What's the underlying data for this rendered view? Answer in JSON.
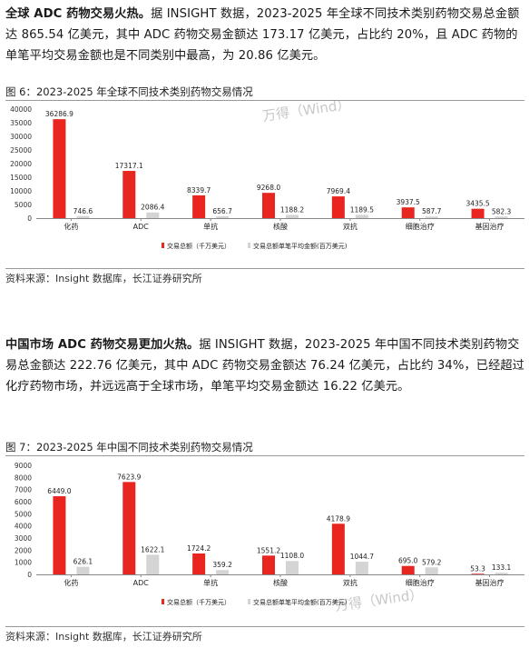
{
  "para1": {
    "bold": "全球 ADC 药物交易火热。",
    "text": "据 INSIGHT 数据，2023-2025 年全球不同技术类别药物交易总金额达 865.54 亿美元，其中 ADC 药物交易金额达 173.17 亿美元，占比约 20%，且 ADC 药物的单笔平均交易金额也是不同类别中最高，为 20.86 亿美元。"
  },
  "fig1": {
    "title": "图 6：2023-2025 年全球不同技术类别药物交易情况",
    "source": "资料来源：Insight 数据库，长江证券研究所",
    "watermark": "万得（Wind）"
  },
  "para2": {
    "bold": "中国市场 ADC 药物交易更加火热。",
    "text": "据 INSIGHT 数据，2023-2025 年中国不同技术类别药物交易总金额达 222.76 亿美元，其中 ADC 药物交易金额达 76.24 亿美元，占比约 34%，已经超过化疗药物市场，并远远高于全球市场，单笔平均交易金额达 16.22 亿美元。"
  },
  "fig2": {
    "title": "图 7：2023-2025 年中国不同技术类别药物交易情况",
    "source": "资料来源：Insight 数据库，长江证券研究所",
    "watermark": "万得（Wind）"
  },
  "colors": {
    "total": "#e8251f",
    "avg": "#d4d4d4"
  },
  "chart_data": [
    {
      "type": "bar",
      "categories": [
        "化药",
        "ADC",
        "单抗",
        "核酸",
        "双抗",
        "细胞治疗",
        "基因治疗"
      ],
      "series": [
        {
          "name": "交易总额（千万美元）",
          "values": [
            36286.9,
            17317.1,
            8339.7,
            9268.0,
            7969.4,
            3937.5,
            3435.5
          ]
        },
        {
          "name": "交易总额单笔平均金额(百万美元)",
          "values": [
            746.6,
            2086.4,
            656.7,
            1188.2,
            1189.5,
            587.7,
            582.3
          ]
        }
      ],
      "data_labels": [
        [
          "36286.9",
          "17317.1",
          "8339.7",
          "9268.0",
          "7969.4",
          "3937.5",
          "3435.5"
        ],
        [
          "746.6",
          "2086.4",
          "656.7",
          "1188.2",
          "1189.5",
          "587.7",
          "582.3"
        ]
      ],
      "ylim": [
        0,
        40000
      ],
      "yticks": [
        "0",
        "5000",
        "10000",
        "15000",
        "20000",
        "25000",
        "30000",
        "35000",
        "40000"
      ],
      "legend": "bottom",
      "grid": false
    },
    {
      "type": "bar",
      "categories": [
        "化药",
        "ADC",
        "单抗",
        "核酸",
        "双抗",
        "细胞治疗",
        "基因治疗"
      ],
      "series": [
        {
          "name": "交易总额（千万美元）",
          "values": [
            6449.0,
            7623.9,
            1724.2,
            1551.2,
            4178.9,
            695.0,
            53.3
          ]
        },
        {
          "name": "交易总额单笔平均金额(百万美元)",
          "values": [
            626.1,
            1622.1,
            359.2,
            1108.0,
            1044.7,
            579.2,
            133.1
          ]
        }
      ],
      "data_labels": [
        [
          "6449.0",
          "7623.9",
          "1724.2",
          "1551.2",
          "4178.9",
          "695.0",
          "53.3"
        ],
        [
          "626.1",
          "1622.1",
          "359.2",
          "1108.0",
          "1044.7",
          "579.2",
          "133.1"
        ]
      ],
      "ylim": [
        0,
        9000
      ],
      "yticks": [
        "0",
        "1000",
        "2000",
        "3000",
        "4000",
        "5000",
        "6000",
        "7000",
        "8000",
        "9000"
      ],
      "legend": "bottom",
      "grid": false
    }
  ]
}
